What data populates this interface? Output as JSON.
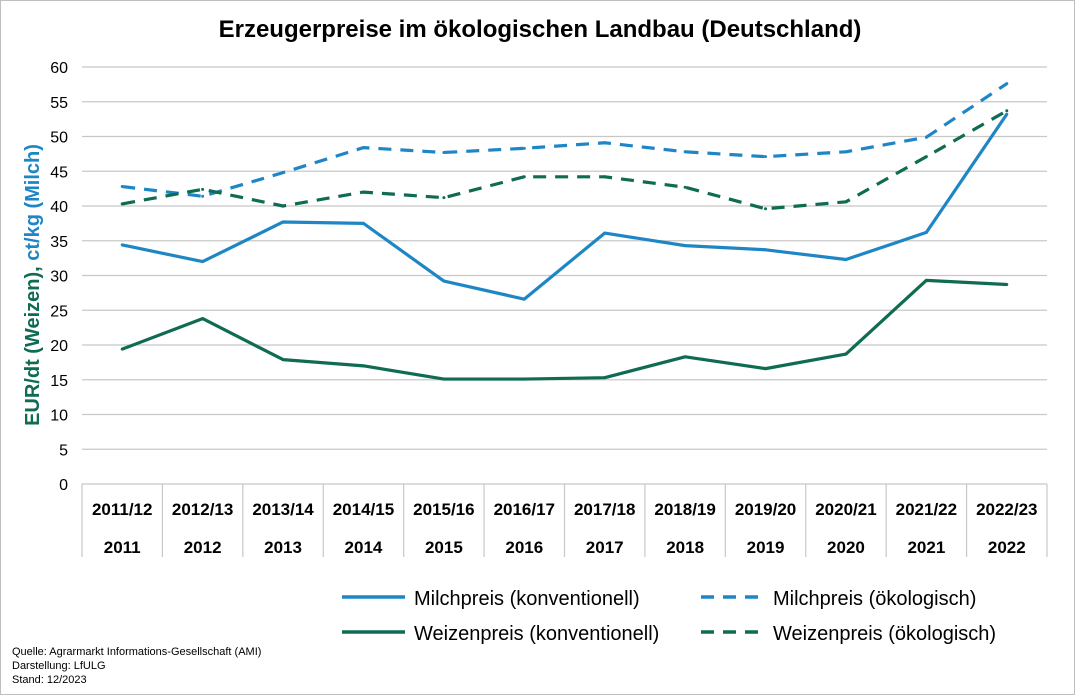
{
  "chart_data": {
    "type": "line",
    "title": "Erzeugerpreise im ökologischen Landbau (Deutschland)",
    "ylabel_part1": "EUR/dt (Weizen), ",
    "ylabel_part2": "ct/kg (Milch)",
    "ylim": [
      0,
      60
    ],
    "yticks": [
      0,
      5,
      10,
      15,
      20,
      25,
      30,
      35,
      40,
      45,
      50,
      55,
      60
    ],
    "grid": true,
    "legend_position": "bottom",
    "categories_row1": [
      "2011/12",
      "2012/13",
      "2013/14",
      "2014/15",
      "2015/16",
      "2016/17",
      "2017/18",
      "2018/19",
      "2019/20",
      "2020/21",
      "2021/22",
      "2022/23"
    ],
    "categories_row2": [
      "2011",
      "2012",
      "2013",
      "2014",
      "2015",
      "2016",
      "2017",
      "2018",
      "2019",
      "2020",
      "2021",
      "2022"
    ],
    "series": [
      {
        "name": "Milchpreis (konventionell)",
        "color": "#1f86c5",
        "dash": "solid",
        "values": [
          34.4,
          32.0,
          37.7,
          37.5,
          29.2,
          26.6,
          36.1,
          34.3,
          33.7,
          32.3,
          36.2,
          53.2
        ]
      },
      {
        "name": "Milchpreis (ökologisch)",
        "color": "#1f86c5",
        "dash": "dashed",
        "values": [
          42.8,
          41.4,
          44.8,
          48.4,
          47.7,
          48.3,
          49.1,
          47.8,
          47.1,
          47.8,
          49.9,
          57.6
        ]
      },
      {
        "name": "Weizenpreis (konventionell)",
        "color": "#0f6b52",
        "dash": "solid",
        "values": [
          19.4,
          23.8,
          17.9,
          17.0,
          15.1,
          15.1,
          15.3,
          18.3,
          16.6,
          18.7,
          29.3,
          28.7
        ]
      },
      {
        "name": "Weizenpreis (ökologisch)",
        "color": "#0f6b52",
        "dash": "dashed",
        "values": [
          40.3,
          42.4,
          40.0,
          42.0,
          41.2,
          44.2,
          44.2,
          42.7,
          39.6,
          40.6,
          47.1,
          53.7
        ]
      }
    ],
    "ylabel_color_1": "#0f6b52",
    "ylabel_color_2": "#1f86c5"
  },
  "source": {
    "line1": "Quelle: Agrarmarkt Informations-Gesellschaft (AMI)",
    "line2": "Darstellung: LfULG",
    "line3": "Stand: 12/2023"
  }
}
